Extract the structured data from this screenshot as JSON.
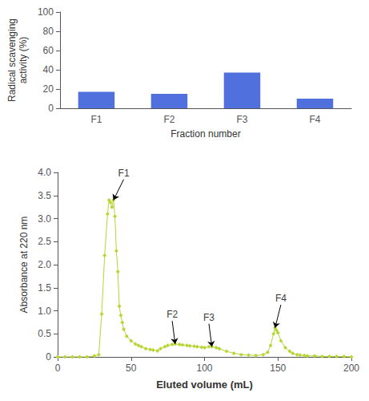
{
  "chart_data": [
    {
      "type": "bar",
      "categories": [
        "F1",
        "F2",
        "F3",
        "F4"
      ],
      "values": [
        17,
        15,
        37,
        10
      ],
      "xlabel": "Fraction number",
      "ylabel": "Radical scavenging\nactivity (%)",
      "ylim": [
        0,
        100
      ],
      "yticks": [
        0,
        20,
        40,
        60,
        80,
        100
      ],
      "grid": false
    },
    {
      "type": "line",
      "x": [
        0,
        5,
        10,
        15,
        20,
        25,
        28,
        30,
        32,
        34,
        35,
        36,
        37,
        38,
        39,
        40,
        41,
        42,
        43,
        44,
        45,
        47,
        50,
        53,
        55,
        57,
        60,
        63,
        65,
        68,
        70,
        73,
        75,
        78,
        80,
        83,
        85,
        88,
        90,
        93,
        95,
        98,
        100,
        103,
        105,
        108,
        110,
        115,
        120,
        125,
        130,
        135,
        140,
        143,
        145,
        147,
        148,
        149,
        150,
        152,
        155,
        158,
        160,
        163,
        165,
        168,
        170,
        175,
        180,
        185,
        190,
        195,
        200
      ],
      "values": [
        0.0,
        0.0,
        0.0,
        0.0,
        0.0,
        0.02,
        0.05,
        0.93,
        2.2,
        3.1,
        3.4,
        3.35,
        3.25,
        3.4,
        3.05,
        2.3,
        1.85,
        1.1,
        0.9,
        0.75,
        0.6,
        0.45,
        0.35,
        0.28,
        0.25,
        0.22,
        0.18,
        0.16,
        0.15,
        0.13,
        0.18,
        0.22,
        0.25,
        0.27,
        0.28,
        0.27,
        0.26,
        0.25,
        0.24,
        0.23,
        0.22,
        0.21,
        0.2,
        0.22,
        0.22,
        0.2,
        0.18,
        0.12,
        0.08,
        0.05,
        0.04,
        0.03,
        0.05,
        0.1,
        0.25,
        0.5,
        0.63,
        0.58,
        0.52,
        0.35,
        0.2,
        0.12,
        0.08,
        0.05,
        0.04,
        0.03,
        0.02,
        0.02,
        0.01,
        0.01,
        0.01,
        0.01,
        0.0
      ],
      "xlabel": "Eluted volume (mL)",
      "ylabel": "Absorbance at 220 nm",
      "xlim": [
        0,
        200
      ],
      "ylim": [
        0,
        4.0
      ],
      "xticks": [
        0,
        50,
        100,
        150,
        200
      ],
      "yticks": [
        0,
        0.5,
        {
          "value": 1.0,
          "label": "1.0"
        },
        1.5,
        {
          "value": 2.0,
          "label": "2.0"
        },
        2.5,
        {
          "value": 3.0,
          "label": "3.0"
        },
        3.5,
        {
          "value": 4.0,
          "label": "4.0"
        }
      ],
      "marker": "diamond",
      "grid": false,
      "annotations": [
        {
          "label": "F1",
          "x": 38,
          "y": 3.4,
          "text_x": 45,
          "text_y": 3.85
        },
        {
          "label": "F2",
          "x": 80,
          "y": 0.28,
          "text_x": 78,
          "text_y": 0.78
        },
        {
          "label": "F3",
          "x": 105,
          "y": 0.22,
          "text_x": 103,
          "text_y": 0.72
        },
        {
          "label": "F4",
          "x": 148,
          "y": 0.63,
          "text_x": 152,
          "text_y": 1.13
        }
      ]
    }
  ]
}
